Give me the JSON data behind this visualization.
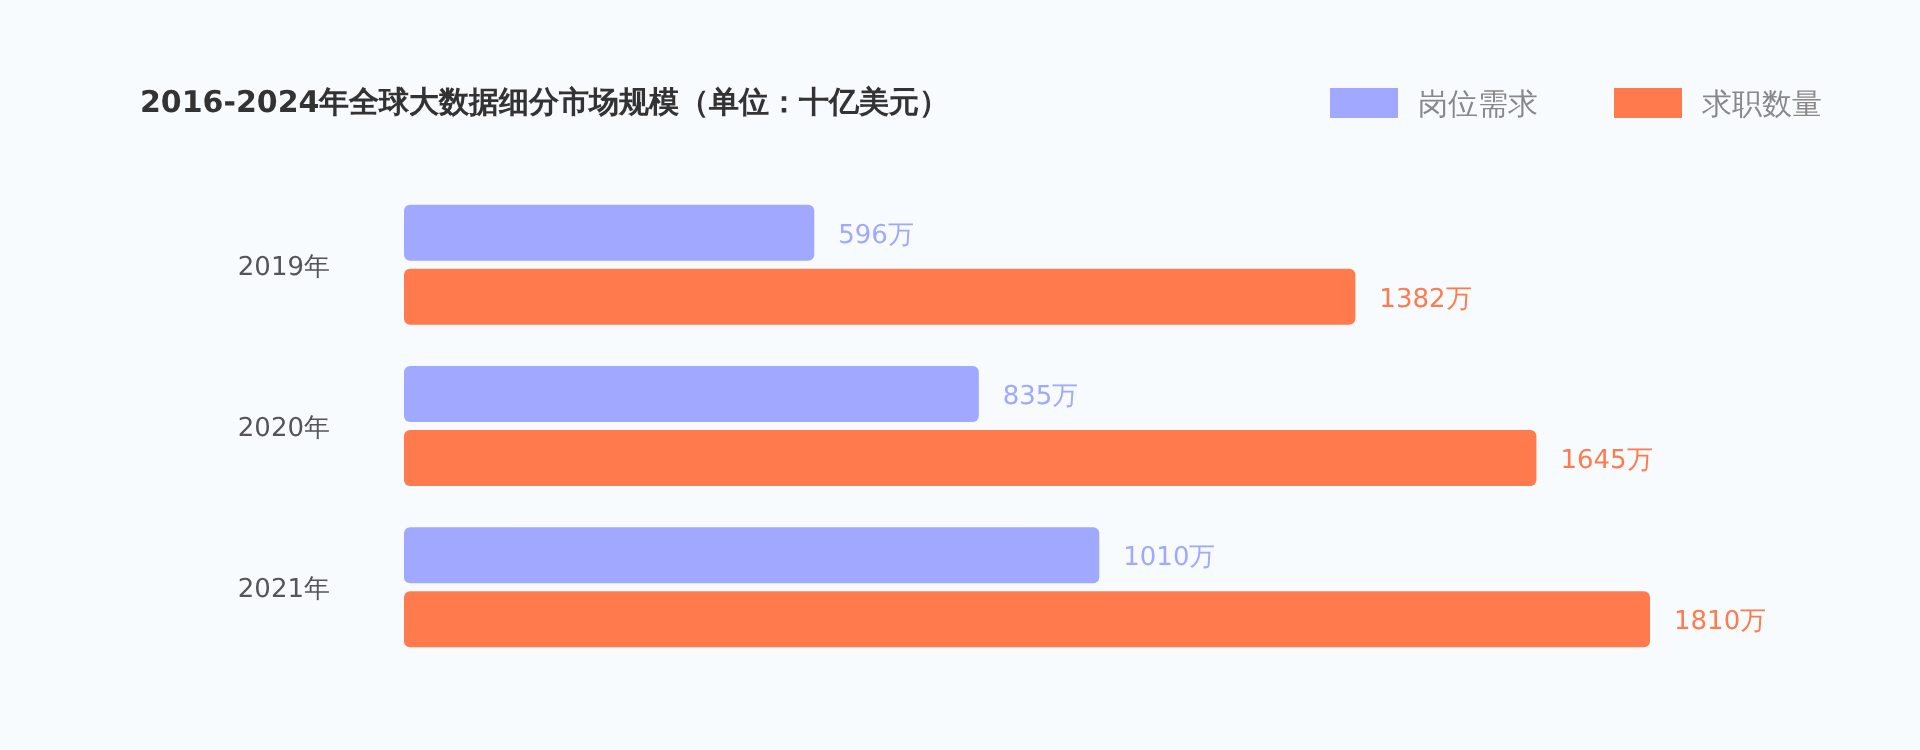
{
  "chart_data": {
    "type": "bar",
    "orientation": "horizontal",
    "title": "2016-2024年全球大数据细分市场规模（单位：十亿美元）",
    "legend": "top right",
    "categories": [
      "2019年",
      "2020年",
      "2021年"
    ],
    "series": [
      {
        "name": "岗位需求",
        "color": "#a0a8ff",
        "values": [
          596,
          835,
          1010
        ],
        "value_labels": [
          "596万",
          "835万",
          "1010万"
        ]
      },
      {
        "name": "求职数量",
        "color": "#ff7a4d",
        "values": [
          1382,
          1645,
          1810
        ],
        "value_labels": [
          "1382万",
          "1645万",
          "1810万"
        ]
      }
    ]
  }
}
